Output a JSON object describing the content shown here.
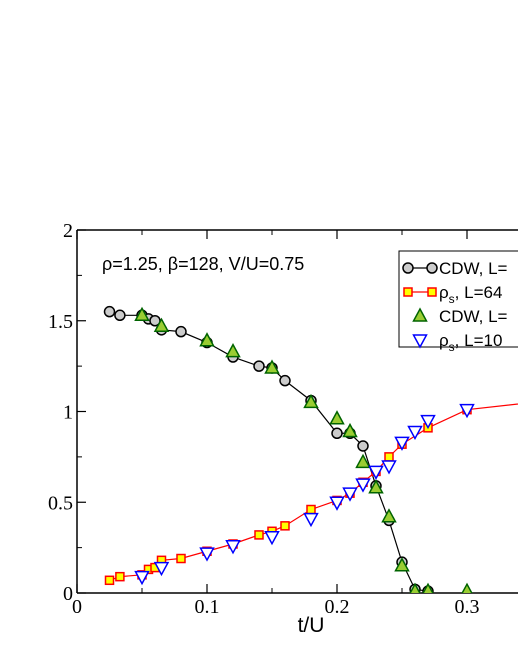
{
  "chart_data": {
    "type": "line",
    "xlabel": "t/U",
    "ylabel": "",
    "xlim": [
      0,
      0.35
    ],
    "ylim": [
      0,
      2
    ],
    "x_ticks": [
      "0",
      "0.1",
      "0.2",
      "0.3"
    ],
    "y_ticks": [
      "0",
      "0.5",
      "1",
      "1.5",
      "2"
    ],
    "annotation": "ρ=1.25, β=128, V/U=0.75",
    "legend_position": "top-right",
    "series": [
      {
        "legend_label": "CDW, L=",
        "marker": "circle",
        "line": true,
        "color": "#000000",
        "fill": "#cccccc",
        "x": [
          0.025,
          0.033,
          0.05,
          0.055,
          0.06,
          0.065,
          0.08,
          0.1,
          0.12,
          0.14,
          0.15,
          0.16,
          0.18,
          0.2,
          0.21,
          0.22,
          0.23,
          0.24,
          0.25,
          0.26,
          0.27
        ],
        "y": [
          1.55,
          1.53,
          1.53,
          1.51,
          1.5,
          1.45,
          1.44,
          1.38,
          1.3,
          1.25,
          1.24,
          1.17,
          1.06,
          0.88,
          0.88,
          0.81,
          0.59,
          0.4,
          0.17,
          0.02,
          0.01
        ]
      },
      {
        "legend_label": "ρ",
        "legend_sub": "s",
        "legend_suffix": ", L=64",
        "marker": "square",
        "line": true,
        "color": "#ff0000",
        "fill": "#ffff00",
        "x": [
          0.025,
          0.033,
          0.05,
          0.055,
          0.06,
          0.065,
          0.08,
          0.1,
          0.12,
          0.14,
          0.15,
          0.16,
          0.18,
          0.2,
          0.21,
          0.22,
          0.23,
          0.24,
          0.25,
          0.27,
          0.3,
          0.35
        ],
        "y": [
          0.07,
          0.09,
          0.1,
          0.13,
          0.14,
          0.18,
          0.19,
          0.23,
          0.27,
          0.32,
          0.34,
          0.37,
          0.46,
          0.51,
          0.55,
          0.61,
          0.67,
          0.75,
          0.82,
          0.91,
          1.01,
          1.05
        ]
      },
      {
        "legend_label": "CDW, L=",
        "marker": "triangle-up",
        "line": false,
        "color": "#006400",
        "fill": "#9acd32",
        "x": [
          0.05,
          0.065,
          0.1,
          0.12,
          0.15,
          0.18,
          0.2,
          0.21,
          0.22,
          0.23,
          0.24,
          0.25,
          0.26,
          0.27,
          0.3
        ],
        "y": [
          1.53,
          1.47,
          1.39,
          1.33,
          1.24,
          1.05,
          0.96,
          0.89,
          0.72,
          0.58,
          0.42,
          0.15,
          0.01,
          0.01,
          0.01
        ]
      },
      {
        "legend_label": "ρ",
        "legend_sub": "s",
        "legend_suffix": ", L=10",
        "marker": "triangle-down",
        "line": false,
        "color": "#0000ff",
        "fill": "#ffffff",
        "x": [
          0.05,
          0.065,
          0.1,
          0.12,
          0.15,
          0.18,
          0.2,
          0.21,
          0.22,
          0.23,
          0.24,
          0.25,
          0.26,
          0.27,
          0.3
        ],
        "y": [
          0.09,
          0.14,
          0.22,
          0.26,
          0.31,
          0.41,
          0.5,
          0.55,
          0.6,
          0.67,
          0.7,
          0.83,
          0.89,
          0.95,
          1.01
        ]
      }
    ]
  }
}
